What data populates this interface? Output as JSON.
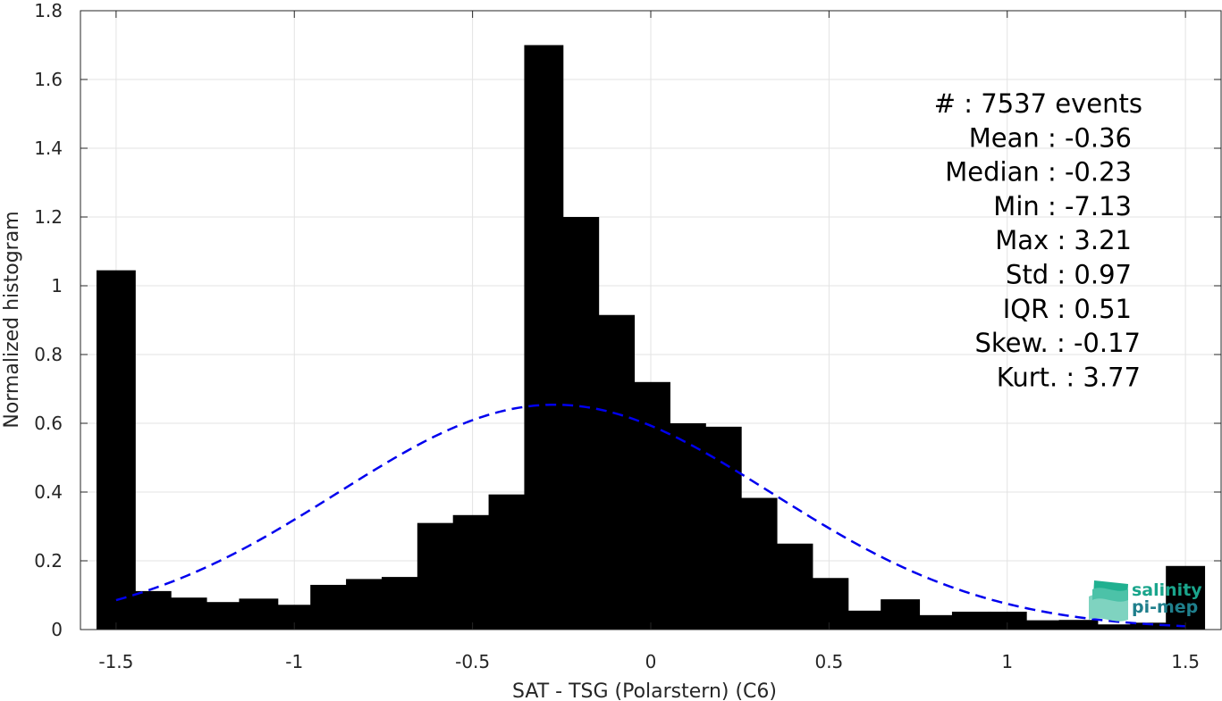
{
  "chart_data": {
    "type": "bar",
    "xlabel": "SAT - TSG (Polarstern) (C6)",
    "ylabel": "Normalized histogram",
    "xlim": [
      -1.6,
      1.6
    ],
    "ylim": [
      0,
      1.8
    ],
    "xticks": [
      "-1.5",
      "-1",
      "-0.5",
      "0",
      "0.5",
      "1",
      "1.5"
    ],
    "yticks": [
      "0",
      "0.2",
      "0.4",
      "0.6",
      "0.8",
      "1",
      "1.2",
      "1.4",
      "1.6",
      "1.8"
    ],
    "grid": true,
    "bar_width": 0.11,
    "x": [
      -1.5,
      -1.4,
      -1.3,
      -1.2,
      -1.1,
      -1.0,
      -0.9,
      -0.8,
      -0.7,
      -0.6,
      -0.5,
      -0.4,
      -0.3,
      -0.2,
      -0.1,
      0.0,
      0.1,
      0.2,
      0.3,
      0.4,
      0.5,
      0.6,
      0.7,
      0.8,
      0.9,
      1.0,
      1.1,
      1.2,
      1.3,
      1.4,
      1.5
    ],
    "values": [
      1.045,
      0.112,
      0.093,
      0.08,
      0.09,
      0.072,
      0.13,
      0.147,
      0.153,
      0.31,
      0.333,
      0.393,
      1.7,
      1.2,
      0.915,
      0.72,
      0.6,
      0.59,
      0.383,
      0.25,
      0.15,
      0.055,
      0.088,
      0.042,
      0.052,
      0.052,
      0.027,
      0.028,
      0.015,
      0.02,
      0.185
    ],
    "series_colors": {
      "bars": "#000000",
      "fit": "#0000ee"
    },
    "gaussian_fit": {
      "mean": -0.27,
      "std": 0.61,
      "style": "dashed"
    },
    "stats": [
      "#  : 7537 events",
      "Mean : -0.36",
      "Median : -0.23",
      "Min : -7.13",
      "Max : 3.21",
      "Std : 0.97",
      "IQR : 0.51",
      "Skew. : -0.17",
      "Kurt. : 3.77"
    ],
    "logo": {
      "line1": "salinity",
      "line2": "pi-mep",
      "color": "#1aa58c"
    }
  }
}
